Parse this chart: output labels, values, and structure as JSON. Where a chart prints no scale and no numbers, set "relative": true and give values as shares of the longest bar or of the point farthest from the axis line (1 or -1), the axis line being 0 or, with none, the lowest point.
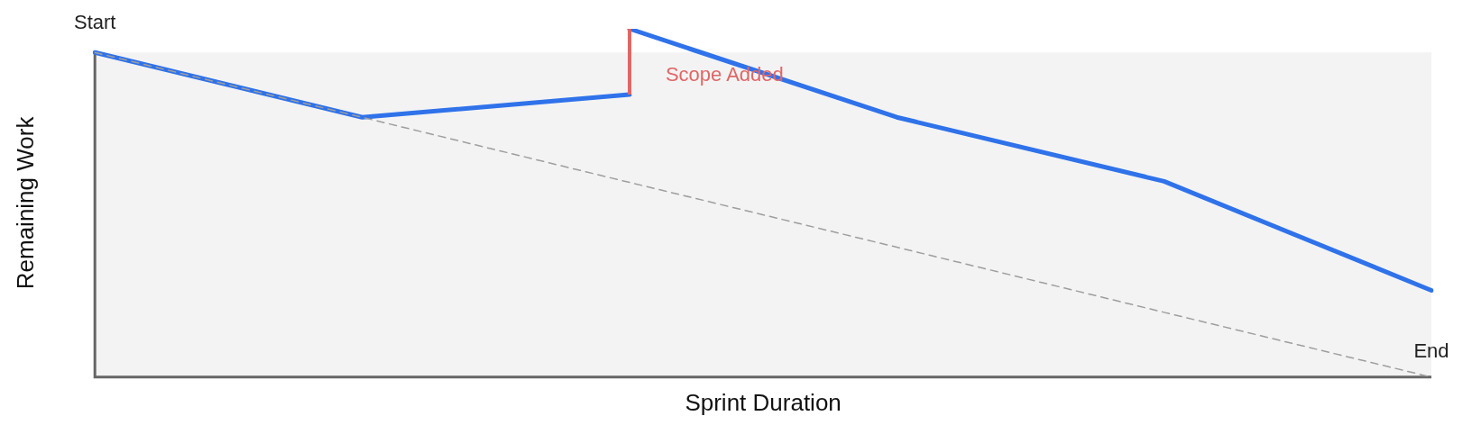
{
  "chart_data": {
    "type": "line",
    "xlabel": "Sprint Duration",
    "ylabel": "Remaining Work",
    "relative": true,
    "categories": [
      null,
      null,
      null,
      null,
      null,
      null
    ],
    "grid": false,
    "legend": false,
    "marker": "none",
    "series": [
      {
        "color": "#9e9e9e",
        "line_style": "dashed",
        "values": [
          0.932,
          0.746,
          0.559,
          0.373,
          0.186,
          0
        ]
      },
      {
        "color": "#2f72ea",
        "line_style": "solid",
        "values": [
          0.932,
          0.746,
          0.811,
          null,
          null,
          null
        ]
      },
      {
        "color": "#2f72ea",
        "line_style": "solid",
        "values": [
          null,
          null,
          1,
          0.746,
          0.562,
          0.249
        ]
      }
    ],
    "annotations": [
      {
        "text": "Start",
        "y": 0.932
      },
      "Scope Added",
      {
        "text": "End",
        "y": 0
      }
    ]
  }
}
